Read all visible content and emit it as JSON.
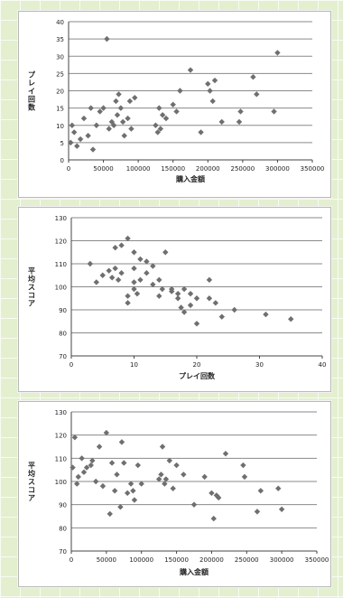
{
  "chart_data": [
    {
      "type": "scatter",
      "xlabel": "購入金額",
      "ylabel": "プレイ回数",
      "xlim": [
        0,
        350000
      ],
      "ylim": [
        0,
        40
      ],
      "xticks": [
        "0",
        "50000",
        "100000",
        "150000",
        "200000",
        "250000",
        "300000",
        "350000"
      ],
      "yticks": [
        "0",
        "5",
        "10",
        "15",
        "20",
        "25",
        "30",
        "35",
        "40"
      ],
      "grid": true,
      "series": [
        {
          "x": [
            3000,
            5000,
            8000,
            12000,
            17000,
            22000,
            28000,
            32000,
            35000,
            40000,
            45000,
            50000,
            55000,
            58000,
            62000,
            65000,
            68000,
            70000,
            72000,
            75000,
            78000,
            80000,
            85000,
            88000,
            90000,
            95000,
            125000,
            128000,
            130000,
            132000,
            135000,
            140000,
            150000,
            155000,
            160000,
            175000,
            190000,
            200000,
            203000,
            207000,
            210000,
            220000,
            245000,
            247000,
            265000,
            270000,
            295000,
            300000
          ],
          "y": [
            5,
            10,
            8,
            4,
            6,
            12,
            7,
            15,
            3,
            10,
            14,
            15,
            35,
            9,
            11,
            10,
            17,
            13,
            19,
            15,
            11,
            7,
            12,
            17,
            9,
            18,
            10,
            8,
            15,
            9,
            13,
            12,
            16,
            14,
            20,
            26,
            8,
            22,
            20,
            17,
            23,
            11,
            11,
            14,
            24,
            19,
            14,
            31
          ]
        }
      ]
    },
    {
      "type": "scatter",
      "xlabel": "プレイ回数",
      "ylabel": "平均スコア",
      "xlim": [
        0,
        40
      ],
      "ylim": [
        70,
        130
      ],
      "xticks": [
        "0",
        "10",
        "20",
        "30",
        "40"
      ],
      "yticks": [
        "70",
        "80",
        "90",
        "100",
        "110",
        "120",
        "130"
      ],
      "grid": true,
      "series": [
        {
          "x": [
            3,
            4,
            5,
            6,
            6.5,
            7,
            7,
            7.5,
            8,
            8,
            9,
            9,
            9,
            10,
            10,
            10,
            10,
            10.5,
            11,
            11,
            12,
            12,
            13,
            13,
            14,
            14,
            14.5,
            15,
            16,
            16,
            17,
            17,
            17.5,
            18,
            18,
            19,
            19,
            20,
            20,
            22,
            22,
            23,
            24,
            26,
            31,
            35
          ],
          "y": [
            110,
            102,
            105,
            107,
            104,
            117,
            108,
            103,
            118,
            106,
            121,
            96,
            93,
            115,
            108,
            102,
            99,
            97,
            112,
            103,
            111,
            106,
            109,
            101,
            103,
            96,
            99,
            115,
            99,
            98,
            97,
            95,
            91,
            99,
            89,
            97,
            92,
            95,
            84,
            103,
            95,
            93,
            87,
            90,
            88,
            86
          ]
        }
      ]
    },
    {
      "type": "scatter",
      "xlabel": "購入金額",
      "ylabel": "平均スコア",
      "xlim": [
        0,
        350000
      ],
      "ylim": [
        70,
        130
      ],
      "xticks": [
        "0",
        "50000",
        "100000",
        "150000",
        "200000",
        "250000",
        "300000",
        "350000"
      ],
      "yticks": [
        "70",
        "80",
        "90",
        "100",
        "110",
        "120",
        "130"
      ],
      "grid": true,
      "series": [
        {
          "x": [
            2000,
            5000,
            8000,
            10000,
            15000,
            18000,
            22000,
            28000,
            30000,
            35000,
            40000,
            45000,
            50000,
            55000,
            58000,
            62000,
            65000,
            70000,
            72000,
            75000,
            80000,
            85000,
            88000,
            90000,
            95000,
            100000,
            125000,
            128000,
            130000,
            133000,
            135000,
            140000,
            145000,
            150000,
            160000,
            175000,
            190000,
            200000,
            203000,
            207000,
            210000,
            220000,
            245000,
            247000,
            265000,
            270000,
            295000,
            300000
          ],
          "y": [
            106,
            119,
            99,
            102,
            110,
            104,
            106,
            107,
            109,
            100,
            115,
            98,
            121,
            86,
            108,
            96,
            103,
            89,
            117,
            108,
            95,
            99,
            96,
            92,
            107,
            99,
            101,
            103,
            115,
            99,
            101,
            109,
            97,
            107,
            103,
            90,
            102,
            95,
            84,
            94,
            93,
            112,
            107,
            102,
            87,
            96,
            97,
            88
          ]
        }
      ]
    }
  ]
}
